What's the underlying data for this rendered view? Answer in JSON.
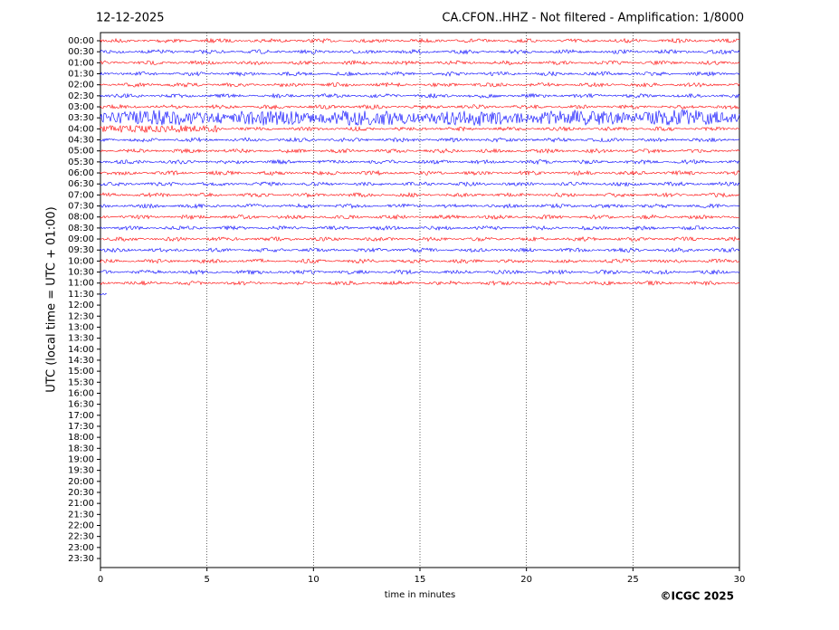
{
  "chart_data": {
    "type": "helicorder",
    "title_left": "12-12-2025",
    "title_right": "CA.CFON..HHZ - Not filtered - Amplification: 1/8000",
    "x_label": "time in minutes",
    "y_label": "UTC (local time = UTC + 01:00)",
    "copyright": "©ICGC 2025",
    "rows": [
      "00:00",
      "00:30",
      "01:00",
      "01:30",
      "02:00",
      "02:30",
      "03:00",
      "03:30",
      "04:00",
      "04:30",
      "05:00",
      "05:30",
      "06:00",
      "06:30",
      "07:00",
      "07:30",
      "08:00",
      "08:30",
      "09:00",
      "09:30",
      "10:00",
      "10:30",
      "11:00",
      "11:30",
      "12:00",
      "12:30",
      "13:00",
      "13:30",
      "14:00",
      "14:30",
      "15:00",
      "15:30",
      "16:00",
      "16:30",
      "17:00",
      "17:30",
      "18:00",
      "18:30",
      "19:00",
      "19:30",
      "20:00",
      "20:30",
      "21:00",
      "21:30",
      "22:00",
      "22:30",
      "23:00",
      "23:30"
    ],
    "xlim": [
      0,
      30
    ],
    "xticks": [
      0,
      5,
      10,
      15,
      20,
      25,
      30
    ],
    "recorded_rows": 24,
    "last_row_minutes": 0.3,
    "colors": [
      "#ff0000",
      "#0000ff"
    ],
    "grid": true
  }
}
